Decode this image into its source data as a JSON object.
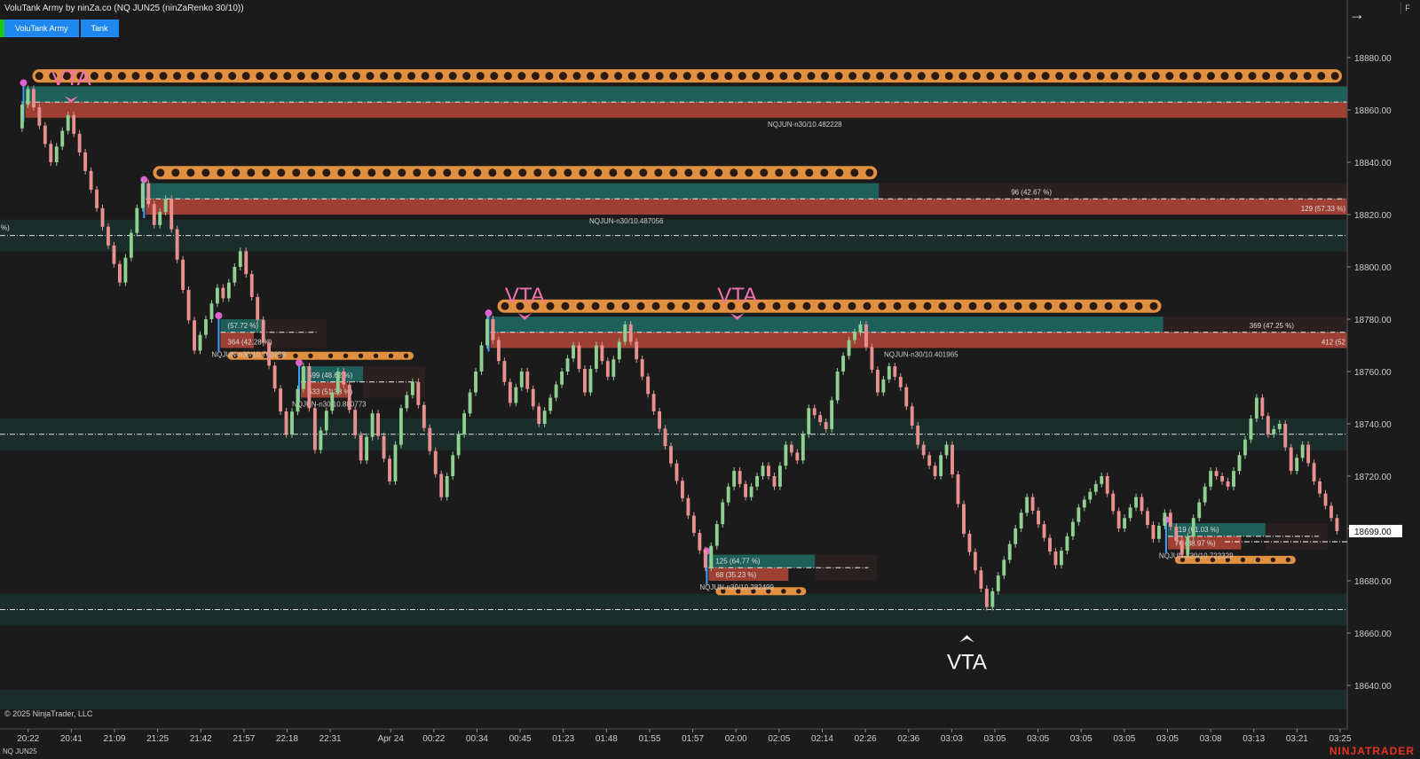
{
  "window": {
    "title": "VoluTank Army by ninZa.co (NQ JUN25 (ninZaRenko 30/10))",
    "tabs": [
      "VoluTank Army",
      "Tank"
    ],
    "arrow_icon": "arrow-right-icon",
    "corner_label": "F",
    "copyright": "© 2025 NinjaTrader, LLC",
    "symbol": "NQ JUN25",
    "brand": "NINJATRADER"
  },
  "colors": {
    "background": "#1b1b1b",
    "up_candle": "#8fcf8f",
    "down_candle": "#e89090",
    "buy_zone": "#1f5f5a",
    "sell_zone": "#9e3f33",
    "tank_bar": "#e09040",
    "vta_pink": "#f070b0",
    "brand": "#e8331f"
  },
  "chart_data": {
    "type": "line",
    "instrument": "NQ JUN25 (ninZaRenko 30/10)",
    "ylim": [
      18630,
      18880
    ],
    "y_ticks": [
      18880,
      18860,
      18840,
      18820,
      18800,
      18780,
      18760,
      18740,
      18720,
      18700,
      18680,
      18660,
      18640
    ],
    "y_tick_labels": [
      "18880.00",
      "18860.00",
      "18840.00",
      "18820.00",
      "18800.00",
      "18780.00",
      "18760.00",
      "18740.00",
      "18720.00",
      "18700.00",
      "18680.00",
      "18660.00",
      "18640.00"
    ],
    "last_price": "18699.00",
    "x_labels": [
      "20:22",
      "20:41",
      "21:09",
      "21:25",
      "21:42",
      "21:57",
      "22:18",
      "22:31",
      "Apr 24",
      "00:22",
      "00:34",
      "00:45",
      "01:23",
      "01:48",
      "01:55",
      "01:57",
      "02:00",
      "02:05",
      "02:14",
      "02:26",
      "02:36",
      "03:03",
      "03:05",
      "03:05",
      "03:05",
      "03:05",
      "03:05",
      "03:08",
      "03:13",
      "03:21",
      "03:25"
    ],
    "x_label_index": [
      1,
      6,
      11,
      16,
      21,
      26,
      31,
      36,
      43,
      48,
      53,
      58,
      63,
      68,
      73,
      78,
      83,
      88,
      93,
      98,
      103,
      108,
      113,
      118,
      123,
      128,
      133,
      138,
      143,
      148,
      153
    ],
    "price_path": [
      [
        0,
        18853
      ],
      [
        1,
        18862
      ],
      [
        2,
        18868
      ],
      [
        6,
        18840
      ],
      [
        9,
        18858
      ],
      [
        18,
        18794
      ],
      [
        22,
        18832
      ],
      [
        24,
        18816
      ],
      [
        26,
        18826
      ],
      [
        31,
        18768
      ],
      [
        35,
        18792
      ],
      [
        36,
        18788
      ],
      [
        39,
        18806
      ],
      [
        47,
        18736
      ],
      [
        50,
        18762
      ],
      [
        52,
        18730
      ],
      [
        54,
        18745
      ],
      [
        55,
        18752
      ],
      [
        56,
        18760
      ],
      [
        57,
        18755
      ],
      [
        60,
        18726
      ],
      [
        62,
        18744
      ],
      [
        65,
        18718
      ],
      [
        67,
        18746
      ],
      [
        69,
        18756
      ],
      [
        74,
        18712
      ],
      [
        80,
        18760
      ],
      [
        82,
        18780
      ],
      [
        86,
        18748
      ],
      [
        88,
        18760
      ],
      [
        91,
        18740
      ],
      [
        97,
        18770
      ],
      [
        99,
        18752
      ],
      [
        101,
        18770
      ],
      [
        103,
        18758
      ],
      [
        106,
        18778
      ],
      [
        120,
        18685
      ],
      [
        123,
        18710
      ],
      [
        125,
        18722
      ],
      [
        127,
        18712
      ],
      [
        130,
        18724
      ],
      [
        132,
        18716
      ],
      [
        134,
        18732
      ],
      [
        136,
        18726
      ],
      [
        138,
        18746
      ],
      [
        141,
        18738
      ],
      [
        143,
        18760
      ],
      [
        145,
        18772
      ],
      [
        147,
        18778
      ],
      [
        150,
        18752
      ],
      [
        152,
        18762
      ],
      [
        154,
        18754
      ],
      [
        157,
        18732
      ],
      [
        160,
        18720
      ],
      [
        161,
        18728
      ],
      [
        162,
        18732
      ],
      [
        165,
        18698
      ],
      [
        169,
        18670
      ],
      [
        172,
        18688
      ],
      [
        176,
        18712
      ],
      [
        181,
        18686
      ],
      [
        185,
        18708
      ],
      [
        189,
        18720
      ],
      [
        192,
        18700
      ],
      [
        195,
        18712
      ],
      [
        198,
        18696
      ],
      [
        200,
        18706
      ],
      [
        203,
        18690
      ],
      [
        205,
        18704
      ],
      [
        208,
        18722
      ],
      [
        211,
        18716
      ],
      [
        214,
        18734
      ],
      [
        216,
        18750
      ],
      [
        218,
        18736
      ],
      [
        220,
        18740
      ],
      [
        222,
        18722
      ],
      [
        224,
        18732
      ],
      [
        226,
        18718
      ],
      [
        229,
        18704
      ],
      [
        230,
        18699
      ]
    ],
    "zones": [
      {
        "label": "NQJUN-n30/10.482228",
        "start": 1,
        "buy_top": 18869,
        "mid": 18863,
        "sell_bottom": 18857,
        "tank_circles": 70,
        "tank_level": 18873
      },
      {
        "label": "NQJUN-n30/10.487056",
        "start": 22,
        "buy_top": 18832,
        "mid": 18826,
        "sell_bottom": 18820,
        "buy_text": "96 (42.67 %)",
        "sell_text": "129 (57.33 %)",
        "tank_circles": 48,
        "tank_level": 18836
      },
      {
        "label": "NQJUN-n30/10.401965",
        "start": 82,
        "buy_top": 18781,
        "mid": 18775,
        "sell_bottom": 18769,
        "buy_text": "369 (47.25 %)",
        "sell_text": "412 (52",
        "tank_circles": 44,
        "tank_level": 18785
      },
      {
        "label": "NQJUN-n30/10.880773",
        "start": 49,
        "buy_top": 18762,
        "mid": 18756,
        "sell_bottom": 18750,
        "buy_text": "599 (48.62 %)",
        "sell_text": "633 (51.38 %)",
        "tank_circles": 7,
        "tank_level": 18766
      },
      {
        "label": "NQJUN-n30/10.760259",
        "start": 35,
        "buy_top": 18780,
        "mid": 18775,
        "sell_bottom": 18769,
        "buy_text": "(57.72 %)",
        "sell_text": "364 (42.28 %)",
        "tank_circles": 6,
        "tank_level": 18766
      },
      {
        "label": "NQJUN-n30/10.282499",
        "start": 120,
        "buy_top": 18690,
        "mid": 18685,
        "sell_bottom": 18680,
        "buy_text": "125 (64.77 %)",
        "sell_text": "68 (35.23 %)",
        "tank_circles": 6,
        "tank_level": 18676
      },
      {
        "label": "NQJUN-n30/10.722329",
        "start": 200,
        "buy_top": 18702,
        "mid": 18697,
        "sell_bottom": 18692,
        "buy_text": "119 (61.03 %)",
        "sell_text": "76 (38.97 %)",
        "tank_circles": 8,
        "tank_level": 18688
      }
    ],
    "faded_levels": [
      18812,
      18736,
      18669
    ],
    "left_edge_text": "%)",
    "vta_signals": [
      {
        "label": "VTA",
        "index": 9,
        "direction": "down",
        "color": "pink"
      },
      {
        "label": "VTA",
        "index": 88,
        "direction": "down",
        "color": "pink"
      },
      {
        "label": "VTA",
        "index": 125,
        "direction": "down",
        "color": "pink"
      },
      {
        "label": "VTA",
        "index": 165,
        "direction": "up",
        "color": "white"
      }
    ]
  }
}
